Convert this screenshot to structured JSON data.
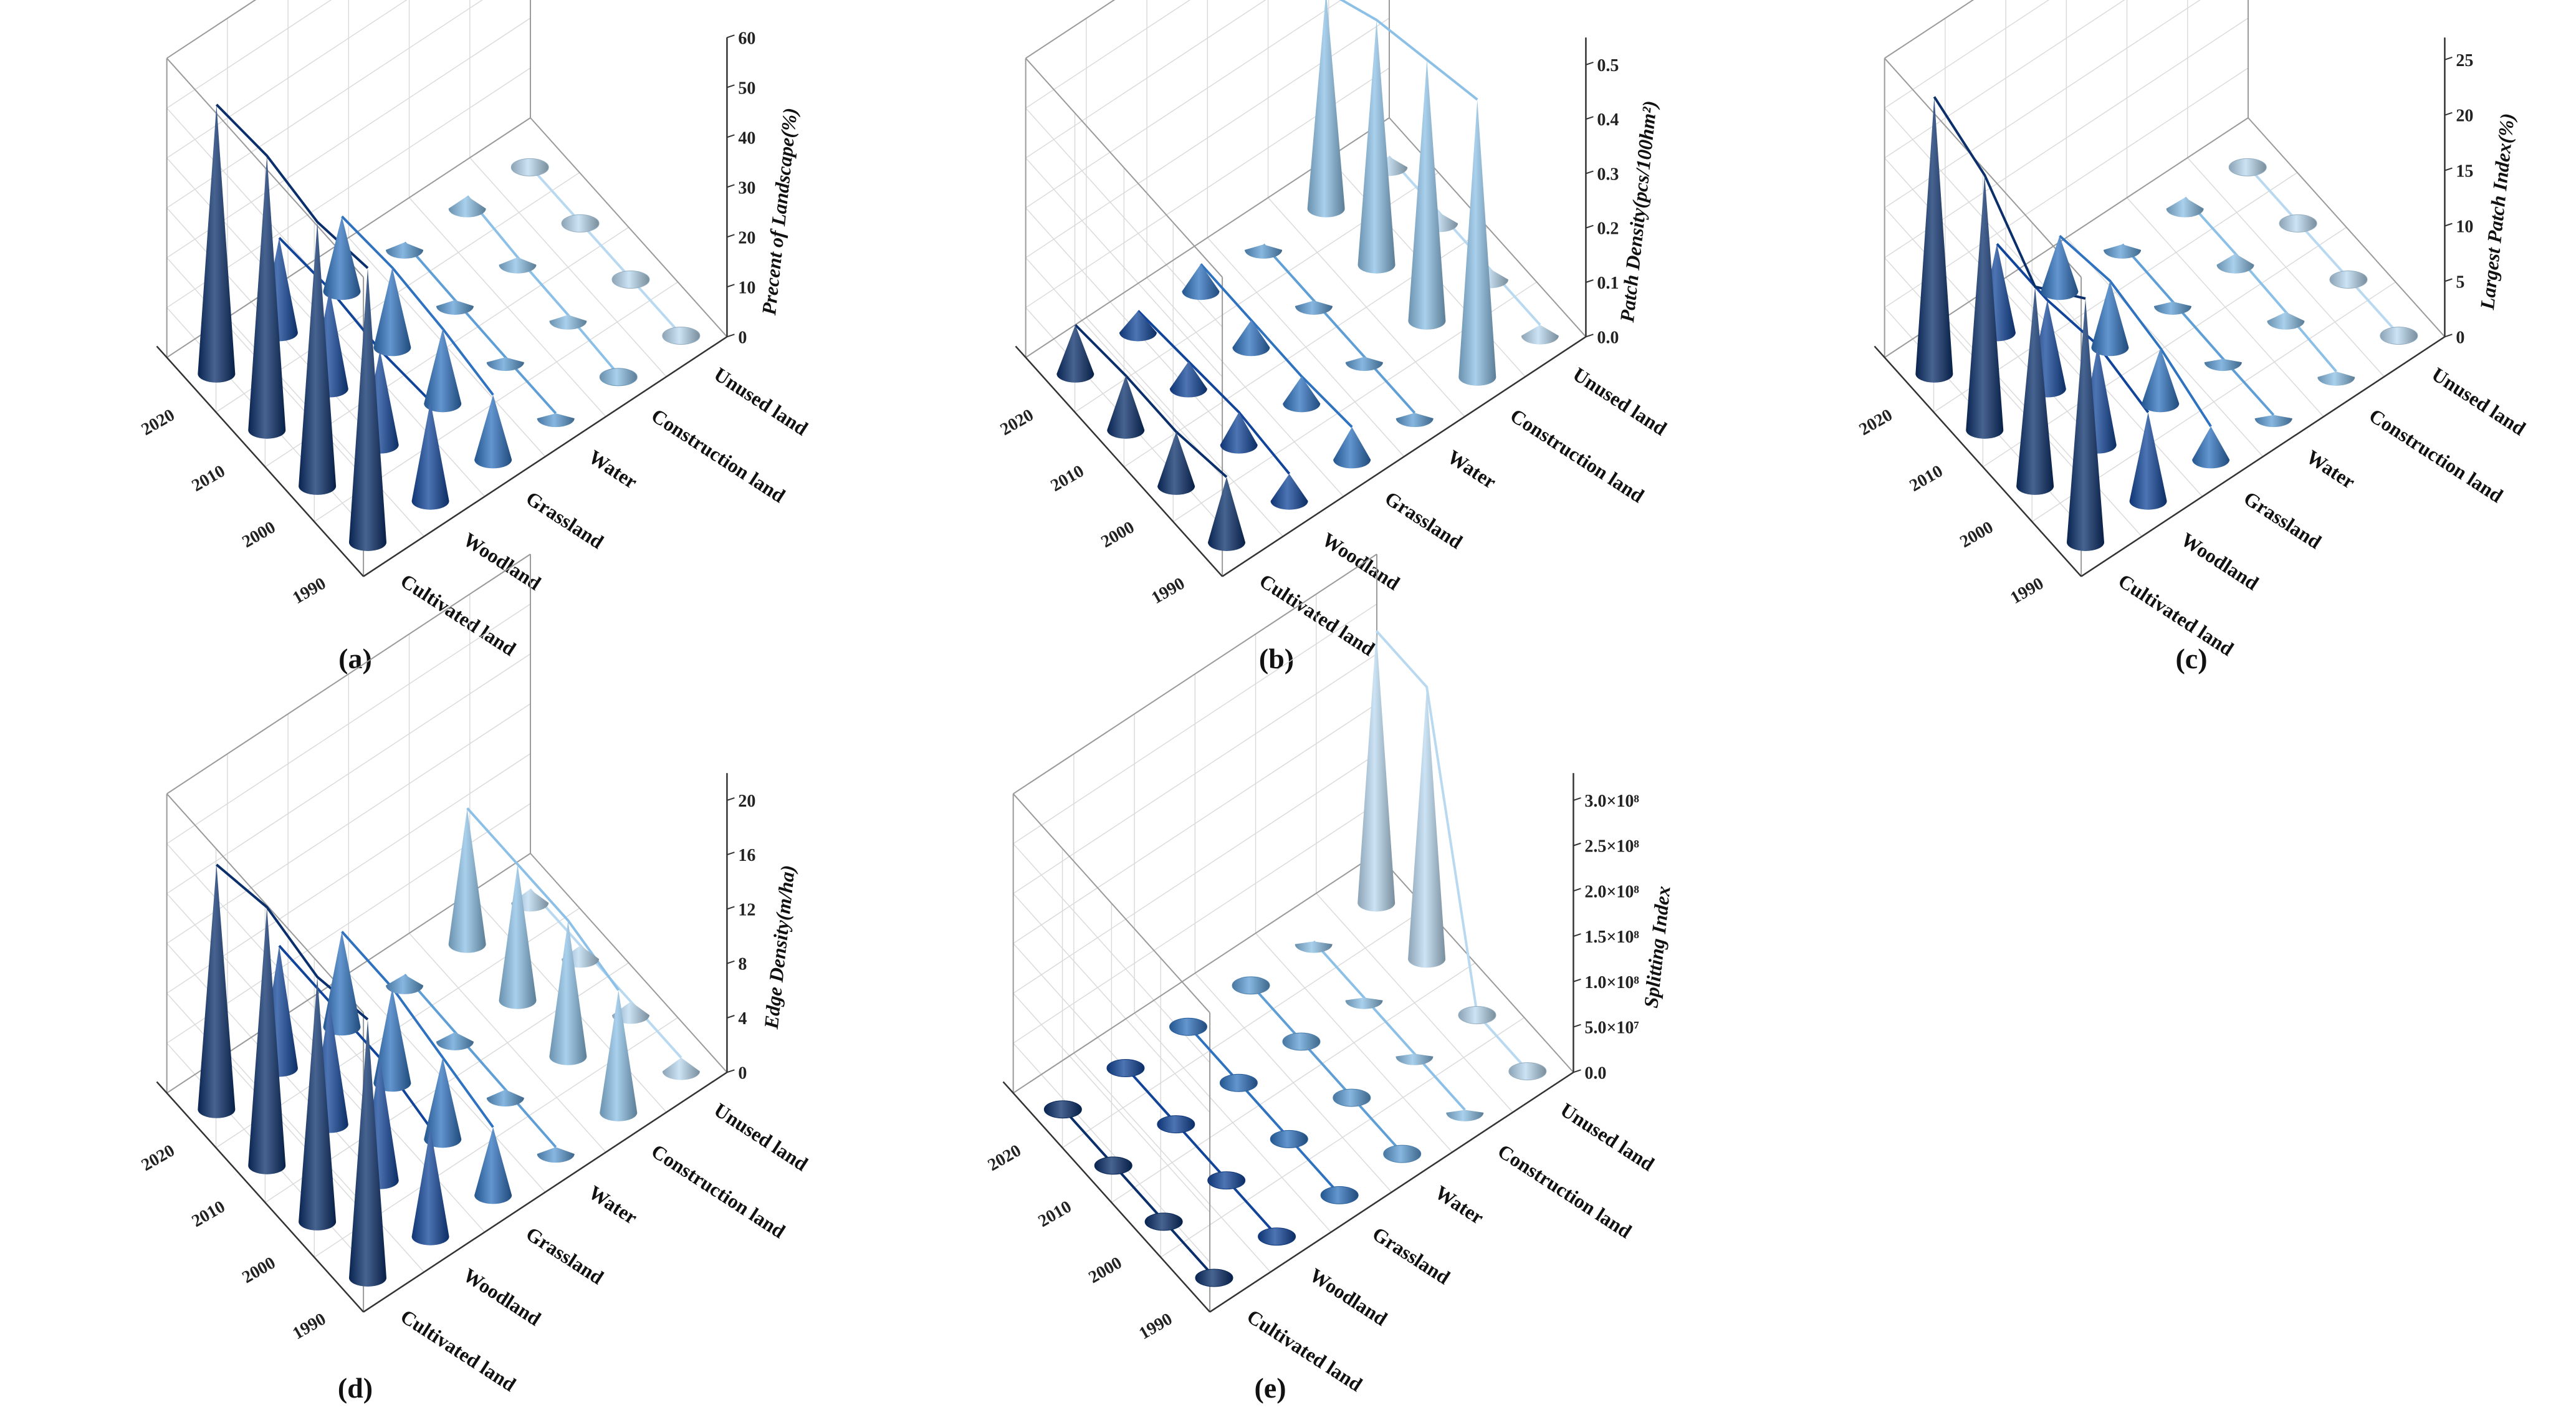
{
  "colors": {
    "years": [
      "#0a2f6b",
      "#12459a",
      "#2f72bf",
      "#5f9fd6",
      "#8cc0e6",
      "#b9d9f0"
    ],
    "grid": "#d9d9d9",
    "box": "#9a9a9a"
  },
  "shared": {
    "years": [
      "1990",
      "2000",
      "2010",
      "2020"
    ],
    "categories": [
      "Cultivated land",
      "Woodland",
      "Grassland",
      "Water",
      "Construction land",
      "Unused land"
    ]
  },
  "chart_data": [
    {
      "id": "a",
      "type": "3d-cone",
      "caption": "(a)",
      "zlabel": "Precent of Landscape(%)",
      "zticks": [
        "0",
        "10",
        "20",
        "30",
        "40",
        "50",
        "60"
      ],
      "zlim": [
        0,
        60
      ],
      "values": {
        "1990": [
          55,
          20,
          13,
          1.0,
          0.5,
          0.2
        ],
        "2000": [
          53,
          19,
          15,
          1.0,
          1.2,
          0.2
        ],
        "2010": [
          55,
          20,
          16,
          1.2,
          1.5,
          0.2
        ],
        "2020": [
          54,
          19,
          15,
          1.5,
          2.5,
          0.2
        ]
      }
    },
    {
      "id": "b",
      "type": "3d-cone",
      "caption": "(b)",
      "zlabel": "Patch Density(pcs/100hm²)",
      "zticks": [
        "0.0",
        "0.1",
        "0.2",
        "0.3",
        "0.4",
        "0.5"
      ],
      "zlim": [
        0,
        0.55
      ],
      "values": {
        "1990": [
          0.12,
          0.05,
          0.06,
          0.01,
          0.51,
          0.02
        ],
        "2000": [
          0.1,
          0.06,
          0.05,
          0.01,
          0.48,
          0.02
        ],
        "2010": [
          0.1,
          0.05,
          0.05,
          0.01,
          0.45,
          0.02
        ],
        "2020": [
          0.09,
          0.04,
          0.05,
          0.01,
          0.4,
          0.02
        ]
      }
    },
    {
      "id": "c",
      "type": "3d-cone",
      "caption": "(c)",
      "zlabel": "Largest Patch Index(%)",
      "zticks": [
        "0",
        "5",
        "10",
        "15",
        "20",
        "25"
      ],
      "zlim": [
        0,
        27
      ],
      "values": {
        "1990": [
          22,
          8,
          3,
          0.3,
          0.5,
          0.1
        ],
        "2000": [
          18,
          9,
          5,
          0.3,
          0.8,
          0.1
        ],
        "2010": [
          23,
          8,
          6,
          0.4,
          1.0,
          0.1
        ],
        "2020": [
          25,
          8,
          5,
          0.5,
          1.0,
          0.1
        ]
      }
    },
    {
      "id": "d",
      "type": "3d-cone",
      "caption": "(d)",
      "zlabel": "Edge Density(m/ha)",
      "zticks": [
        "0",
        "4",
        "8",
        "12",
        "16",
        "20"
      ],
      "zlim": [
        0,
        22
      ],
      "values": {
        "1990": [
          19,
          8,
          5,
          0.5,
          9,
          1
        ],
        "2000": [
          18,
          9,
          6,
          0.6,
          10,
          1
        ],
        "2010": [
          19,
          9,
          7,
          0.7,
          10,
          1
        ],
        "2020": [
          18,
          9,
          7,
          0.8,
          10,
          1
        ]
      }
    },
    {
      "id": "e",
      "type": "3d-cone",
      "caption": "(e)",
      "zlabel": "Splitting Index",
      "zticks": [
        "0.0",
        "5.0×10⁷",
        "1.0×10⁸",
        "1.5×10⁸",
        "2.0×10⁸",
        "2.5×10⁸",
        "3.0×10⁸"
      ],
      "zlim": [
        0,
        330000000
      ],
      "values": {
        "1990": [
          1000000,
          1000000,
          1000000,
          1000000,
          3000000,
          1000000
        ],
        "2000": [
          1000000,
          1000000,
          1000000,
          1000000,
          3000000,
          1000000
        ],
        "2010": [
          1000000,
          1000000,
          1000000,
          1000000,
          3000000,
          300000000
        ],
        "2020": [
          1000000,
          1000000,
          1000000,
          1000000,
          3000000,
          300000000
        ]
      }
    }
  ]
}
